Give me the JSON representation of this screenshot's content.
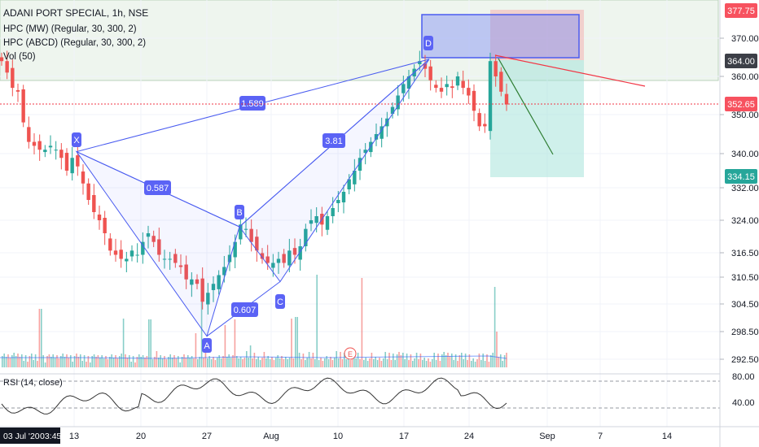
{
  "header": {
    "title": "ADANI PORT SPECIAL, 1h, NSE",
    "indicators": [
      "HPC (MW) (Regular, 30, 300, 2)",
      "HPC (ABCD) (Regular, 30, 300, 2)",
      "Vol (50)"
    ]
  },
  "rsi": {
    "label": "RSI (14, close)",
    "ticks": [
      "80.00",
      "40.00"
    ]
  },
  "time_label": {
    "date": "03 Jul '20",
    "time": "03:45"
  },
  "chart_data": {
    "type": "candlestick",
    "ylim": [
      289,
      380
    ],
    "price_ticks": [
      370,
      360,
      350,
      340,
      332,
      324,
      316.5,
      310.5,
      304.5,
      298.5,
      292.5
    ],
    "price_tick_labels": [
      "370.00",
      "360.00",
      "350.00",
      "340.00",
      "332.00",
      "324.00",
      "316.50",
      "310.50",
      "304.50",
      "298.50",
      "292.50"
    ],
    "x_ticks": [
      "13",
      "20",
      "27",
      "Aug",
      "10",
      "17",
      "24",
      "Sep",
      "7",
      "14"
    ],
    "badges": [
      {
        "value": "377.75",
        "color": "#f7525f"
      },
      {
        "value": "364.00",
        "color": "#3c3f47"
      },
      {
        "value": "352.65",
        "color": "#f7525f"
      },
      {
        "value": "334.15",
        "color": "#26a69a"
      }
    ],
    "close_series": [
      364,
      361,
      357,
      356,
      348,
      343,
      342,
      341,
      341,
      342,
      341,
      339,
      336,
      339,
      337,
      333,
      329,
      326,
      324,
      321,
      317,
      316,
      315,
      315,
      317,
      316,
      319,
      321,
      319,
      316,
      315,
      315,
      314,
      313,
      310,
      310,
      309,
      305,
      307,
      309,
      311,
      313,
      316,
      319,
      323,
      322,
      319,
      317,
      315,
      314,
      314,
      315,
      314,
      317,
      316,
      318,
      322,
      324,
      325,
      323,
      325,
      327,
      329,
      331,
      334,
      336,
      339,
      341,
      343,
      345,
      347,
      349,
      352,
      355,
      358,
      360,
      362,
      364,
      362,
      359,
      357,
      356,
      358,
      357,
      360,
      357,
      355,
      351,
      347,
      347,
      364,
      360,
      356,
      352.65
    ],
    "pattern_points": [
      {
        "label": "X",
        "value": 340.5
      },
      {
        "label": "A",
        "value": 297.5
      },
      {
        "label": "B",
        "value": 322.5
      },
      {
        "label": "C",
        "value": 309.5
      },
      {
        "label": "D",
        "value": 364.5
      }
    ],
    "pattern_ratios": [
      "1.589",
      "0.587",
      "0.607",
      "3.81"
    ],
    "marker": "E"
  }
}
